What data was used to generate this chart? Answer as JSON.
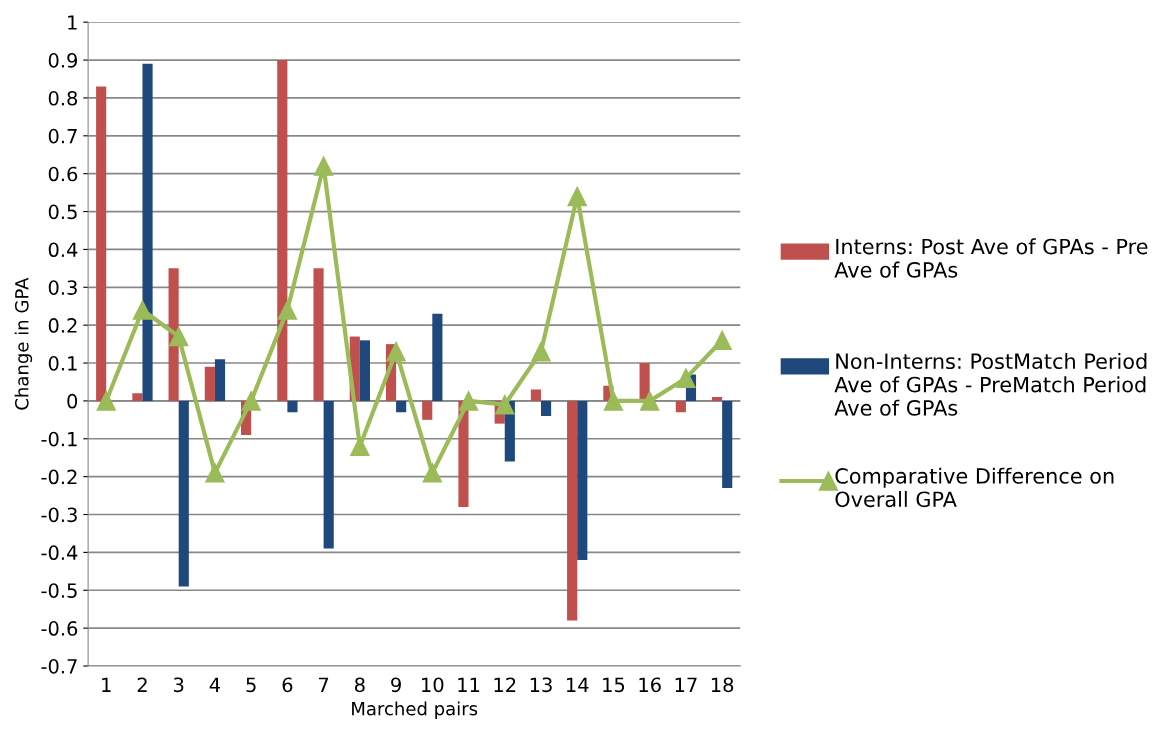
{
  "chart_data": {
    "type": "bar",
    "xlabel": "Marched pairs",
    "ylabel": "Change in GPA",
    "categories": [
      "1",
      "2",
      "3",
      "4",
      "5",
      "6",
      "7",
      "8",
      "9",
      "10",
      "11",
      "12",
      "13",
      "14",
      "15",
      "16",
      "17",
      "18"
    ],
    "series": [
      {
        "name": "Interns: Post Ave of GPAs - Pre Ave of GPAs",
        "color": "#c0504d",
        "values": [
          0.83,
          0.02,
          0.35,
          0.09,
          -0.09,
          0.9,
          0.35,
          0.17,
          0.15,
          -0.05,
          -0.28,
          -0.06,
          0.03,
          -0.58,
          0.04,
          0.1,
          -0.03,
          0.01
        ]
      },
      {
        "name": "Non-Interns: PostMatch Period Ave of GPAs - PreMatch Period Ave of GPAs",
        "color": "#1f497d",
        "values": [
          0,
          0.89,
          -0.49,
          0.11,
          0,
          -0.03,
          -0.39,
          0.16,
          -0.03,
          0.23,
          0,
          -0.16,
          -0.04,
          -0.42,
          0,
          0,
          0.07,
          -0.23
        ]
      },
      {
        "name": "Comparative Difference on Overall GPA",
        "type": "line",
        "color": "#9bbb59",
        "marker": "triangle",
        "values": [
          0,
          0.24,
          0.17,
          -0.19,
          0,
          0.24,
          0.62,
          -0.12,
          0.13,
          -0.19,
          0,
          -0.01,
          0.13,
          0.54,
          0,
          0,
          0.06,
          0.16
        ]
      }
    ],
    "ylim": [
      -0.7,
      1
    ],
    "yticks": [
      -0.7,
      -0.6,
      -0.5,
      -0.4,
      -0.3,
      -0.2,
      -0.1,
      0,
      0.1,
      0.2,
      0.3,
      0.4,
      0.5,
      0.6,
      0.7,
      0.8,
      0.9,
      1
    ],
    "grid": "y",
    "legend": "right"
  }
}
